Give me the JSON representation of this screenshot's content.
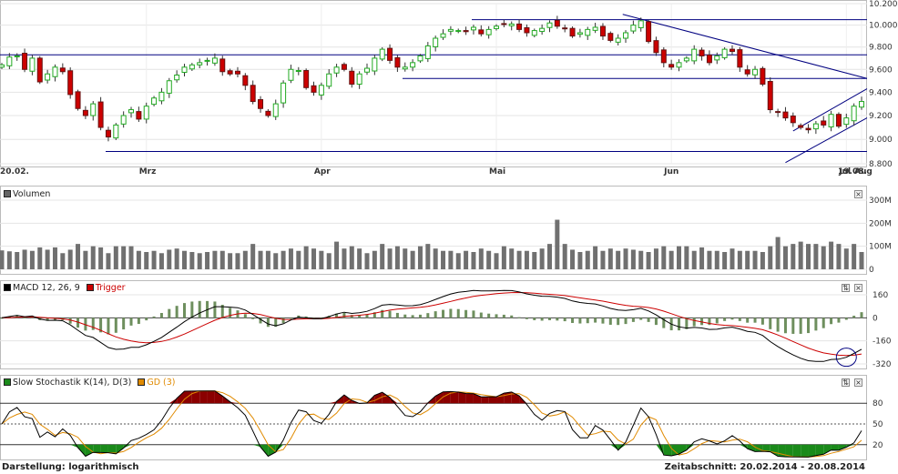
{
  "chart_data": [
    {
      "type": "candlestick",
      "ylim": [
        8800,
        10200
      ],
      "yticks": [
        "8.800",
        "9.000",
        "9.200",
        "9.400",
        "9.600",
        "9.800",
        "10.000",
        "10.200"
      ],
      "xticks": [
        "20.02.",
        "Mrz",
        "Apr",
        "Mai",
        "Jun",
        "Jul",
        "Aug",
        "19.08."
      ],
      "close": [
        9640,
        9710,
        9720,
        9600,
        9700,
        9490,
        9560,
        9620,
        9580,
        9380,
        9260,
        9200,
        9300,
        9100,
        9020,
        9120,
        9200,
        9250,
        9170,
        9280,
        9350,
        9400,
        9500,
        9550,
        9620,
        9640,
        9660,
        9680,
        9700,
        9580,
        9560,
        9560,
        9460,
        9320,
        9260,
        9200,
        9300,
        9480,
        9600,
        9590,
        9440,
        9400,
        9460,
        9560,
        9620,
        9600,
        9470,
        9560,
        9610,
        9700,
        9780,
        9680,
        9620,
        9620,
        9660,
        9720,
        9810,
        9880,
        9920,
        9960,
        9950,
        9940,
        9980,
        9920,
        9960,
        9990,
        10010,
        10010,
        9960,
        9930,
        9950,
        9970,
        10020,
        9990,
        9970,
        9900,
        9930,
        9960,
        9980,
        9900,
        9860,
        9880,
        9930,
        10000,
        10040,
        9850,
        9750,
        9660,
        9620,
        9660,
        9700,
        9780,
        9720,
        9660,
        9720,
        9780,
        9760,
        9620,
        9560,
        9600,
        9470,
        9250,
        9230,
        9180,
        9140,
        9100,
        9080,
        9130,
        9120,
        9210,
        9110,
        9180,
        9280,
        9320
      ],
      "volume_M": [
        82,
        78,
        75,
        85,
        80,
        95,
        85,
        95,
        70,
        85,
        110,
        80,
        100,
        95,
        70,
        100,
        100,
        100,
        80,
        75,
        80,
        70,
        85,
        90,
        80,
        75,
        70,
        75,
        80,
        80,
        70,
        70,
        80,
        110,
        80,
        80,
        70,
        80,
        90,
        80,
        100,
        90,
        80,
        70,
        120,
        90,
        100,
        90,
        70,
        80,
        110,
        90,
        100,
        90,
        80,
        100,
        110,
        90,
        80,
        80,
        70,
        80,
        75,
        90,
        80,
        70,
        100,
        90,
        80,
        80,
        75,
        90,
        110,
        215,
        110,
        85,
        75,
        80,
        100,
        80,
        90,
        80,
        90,
        85,
        80,
        75,
        90,
        100,
        80,
        100,
        100,
        80,
        95,
        80,
        80,
        75,
        90,
        80,
        80,
        80,
        75,
        100,
        140,
        100,
        110,
        120,
        110,
        110,
        100,
        120,
        110,
        90,
        110,
        75
      ],
      "yticks_volume": [
        "0",
        "100M",
        "200M",
        "300M"
      ],
      "horizontal_lines": [
        10050,
        9730,
        9520,
        8900
      ],
      "trendlines": "falling resistance line from early July top, rising channel from August low"
    }
  ],
  "panels": {
    "volume": {
      "title": "Volumen"
    },
    "macd": {
      "title": "MACD 12, 26, 9",
      "trigger": "Trigger",
      "yticks": [
        "160",
        "0",
        "-160",
        "-320"
      ],
      "ylim": [
        -320,
        160
      ]
    },
    "stoch": {
      "title": "Slow Stochastik K(14), D(3)",
      "gd": "GD (3)",
      "yticks": [
        "80",
        "50",
        "20"
      ],
      "levels": [
        80,
        50,
        20
      ]
    }
  },
  "buttons": {
    "close": "×",
    "resize": "⇅"
  },
  "footer": {
    "left": "Darstellung: logarithmisch",
    "right": "Zeitabschnitt: 20.02.2014 - 20.08.2014"
  },
  "colors": {
    "up": "#22aa22",
    "down": "#cc0000",
    "hline": "#000080",
    "macd_main": "#000000",
    "macd_trigger": "#cc0000",
    "hist_bar": "#6e8f5e",
    "stoch_fill_high": "#8b0000",
    "stoch_fill_low": "#1a8a1a",
    "gd": "#e08a00"
  }
}
